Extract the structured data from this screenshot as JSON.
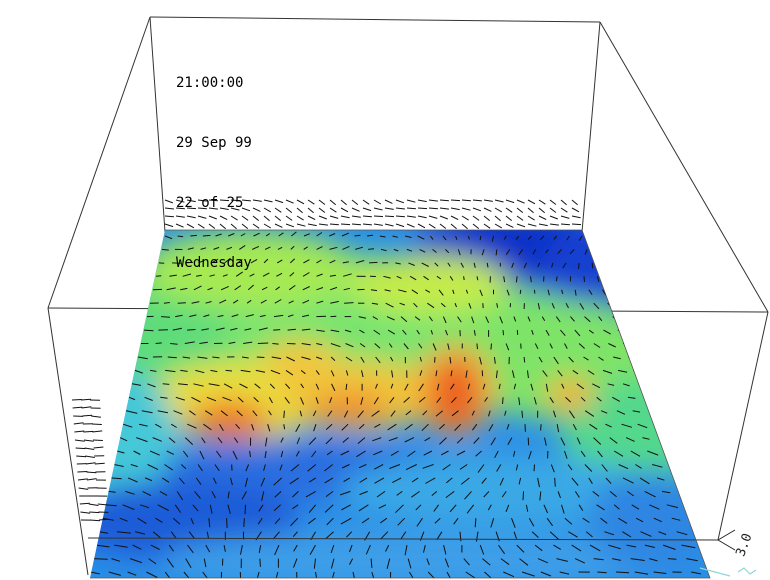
{
  "overlay": {
    "time": "21:00:00",
    "date": "29 Sep 99",
    "frame": "22 of 25",
    "weekday": "Wednesday"
  },
  "axis": {
    "tick_label": "3.0",
    "secondary_label_color": "#8fd6d8"
  },
  "colors": {
    "background": "#ffffff",
    "box_lines": "#333333",
    "vectors": "#101010",
    "colormap": [
      "#1030c8",
      "#1a78e8",
      "#33c2e6",
      "#60e07a",
      "#b8ec48",
      "#ffd23a",
      "#ff8a2a",
      "#e03018"
    ]
  }
}
